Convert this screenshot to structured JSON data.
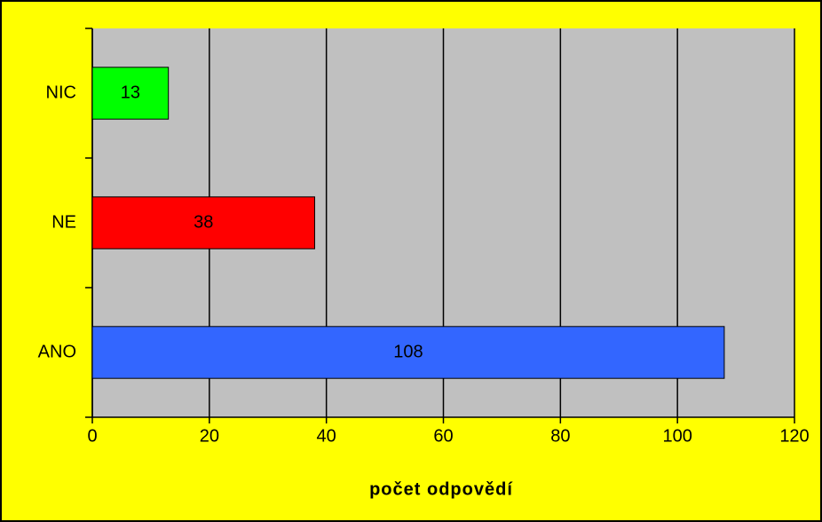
{
  "chart_data": {
    "type": "bar",
    "orientation": "horizontal",
    "categories": [
      "NIC",
      "NE",
      "ANO"
    ],
    "values": [
      13,
      38,
      108
    ],
    "colors": [
      "#00ff00",
      "#ff0000",
      "#3366ff"
    ],
    "xlabel": "počet odpovědí",
    "xlim": [
      0,
      120
    ],
    "xticks": [
      0,
      20,
      40,
      60,
      80,
      100,
      120
    ],
    "grid": true
  }
}
